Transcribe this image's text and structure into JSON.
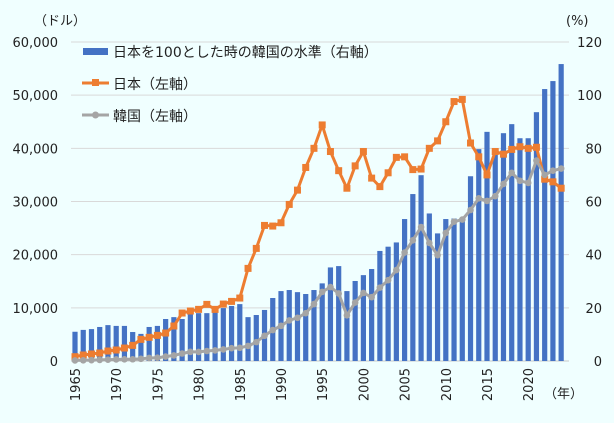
{
  "chart_data": {
    "type": "bar+line",
    "left_axis_unit": "（ドル）",
    "right_axis_unit": "(%)",
    "x_axis_unit": "（年）",
    "ylim_left": [
      0,
      60000
    ],
    "ylim_right": [
      0,
      120
    ],
    "left_ticks": [
      "0",
      "10,000",
      "20,000",
      "30,000",
      "40,000",
      "50,000",
      "60,000"
    ],
    "right_ticks": [
      "0",
      "20",
      "40",
      "60",
      "80",
      "100",
      "120"
    ],
    "x_tick_labels": [
      "1965",
      "1970",
      "1975",
      "1980",
      "1985",
      "1990",
      "1995",
      "2000",
      "2005",
      "2010",
      "2015",
      "2020"
    ],
    "grid": true,
    "legend_placement": "top-left",
    "x": [
      1965,
      1966,
      1967,
      1968,
      1969,
      1970,
      1971,
      1972,
      1973,
      1974,
      1975,
      1976,
      1977,
      1978,
      1979,
      1980,
      1981,
      1982,
      1983,
      1984,
      1985,
      1986,
      1987,
      1988,
      1989,
      1990,
      1991,
      1992,
      1993,
      1994,
      1995,
      1996,
      1997,
      1998,
      1999,
      2000,
      2001,
      2002,
      2003,
      2004,
      2005,
      2006,
      2007,
      2008,
      2009,
      2010,
      2011,
      2012,
      2013,
      2014,
      2015,
      2016,
      2017,
      2018,
      2019,
      2020,
      2021,
      2022,
      2023,
      2024
    ],
    "series": [
      {
        "name": "日本を100とした時の韓国の水準（右軸）",
        "type": "bar",
        "axis": "right",
        "color": "#4472C4",
        "values": [
          11.0,
          11.7,
          12.0,
          12.8,
          13.5,
          13.2,
          13.2,
          10.9,
          10.2,
          12.8,
          13.2,
          15.8,
          16.5,
          15.8,
          17.7,
          18.0,
          18.0,
          18.8,
          19.9,
          20.7,
          21.4,
          16.5,
          17.3,
          19.2,
          23.7,
          26.3,
          26.7,
          25.9,
          25.2,
          26.7,
          29.2,
          35.2,
          35.7,
          26.3,
          30.1,
          32.3,
          34.6,
          41.4,
          43.0,
          44.6,
          53.4,
          62.8,
          69.9,
          55.5,
          48.0,
          53.4,
          53.6,
          53.6,
          69.5,
          79.7,
          86.2,
          79.3,
          85.7,
          89.1,
          83.8,
          83.8,
          93.6,
          102.3,
          105.3,
          111.7
        ]
      },
      {
        "name": "日本（左軸）",
        "type": "line",
        "marker": "square",
        "axis": "left",
        "color": "#ED7D31",
        "values": [
          810,
          1130,
          1320,
          1500,
          1880,
          2070,
          2440,
          2940,
          4070,
          4450,
          4820,
          5260,
          6580,
          9020,
          9400,
          9710,
          10650,
          9710,
          10710,
          11210,
          11840,
          17420,
          21180,
          25500,
          25380,
          26000,
          29450,
          32140,
          36400,
          40000,
          44400,
          39400,
          35800,
          32500,
          36700,
          39400,
          34400,
          32800,
          35400,
          38300,
          38400,
          36000,
          36100,
          40000,
          41400,
          45000,
          48800,
          49200,
          41000,
          38400,
          35000,
          39400,
          38900,
          39800,
          40300,
          40000,
          40200,
          34200,
          33700,
          32500
        ]
      },
      {
        "name": "韓国（左軸）",
        "type": "line",
        "marker": "circle",
        "axis": "left",
        "color": "#A5A5A5",
        "values": [
          110,
          130,
          160,
          200,
          250,
          290,
          320,
          330,
          410,
          570,
          620,
          830,
          1050,
          1410,
          1720,
          1710,
          1880,
          1990,
          2180,
          2410,
          2480,
          2830,
          3550,
          4750,
          5820,
          6610,
          7640,
          8130,
          9000,
          10700,
          13000,
          13900,
          12700,
          8600,
          11000,
          12800,
          12000,
          13800,
          15200,
          17100,
          20400,
          22700,
          25200,
          22200,
          19900,
          24100,
          26200,
          26600,
          28400,
          30600,
          30100,
          31000,
          33300,
          35400,
          33900,
          33500,
          37700,
          35000,
          35800,
          36200
        ]
      }
    ]
  }
}
